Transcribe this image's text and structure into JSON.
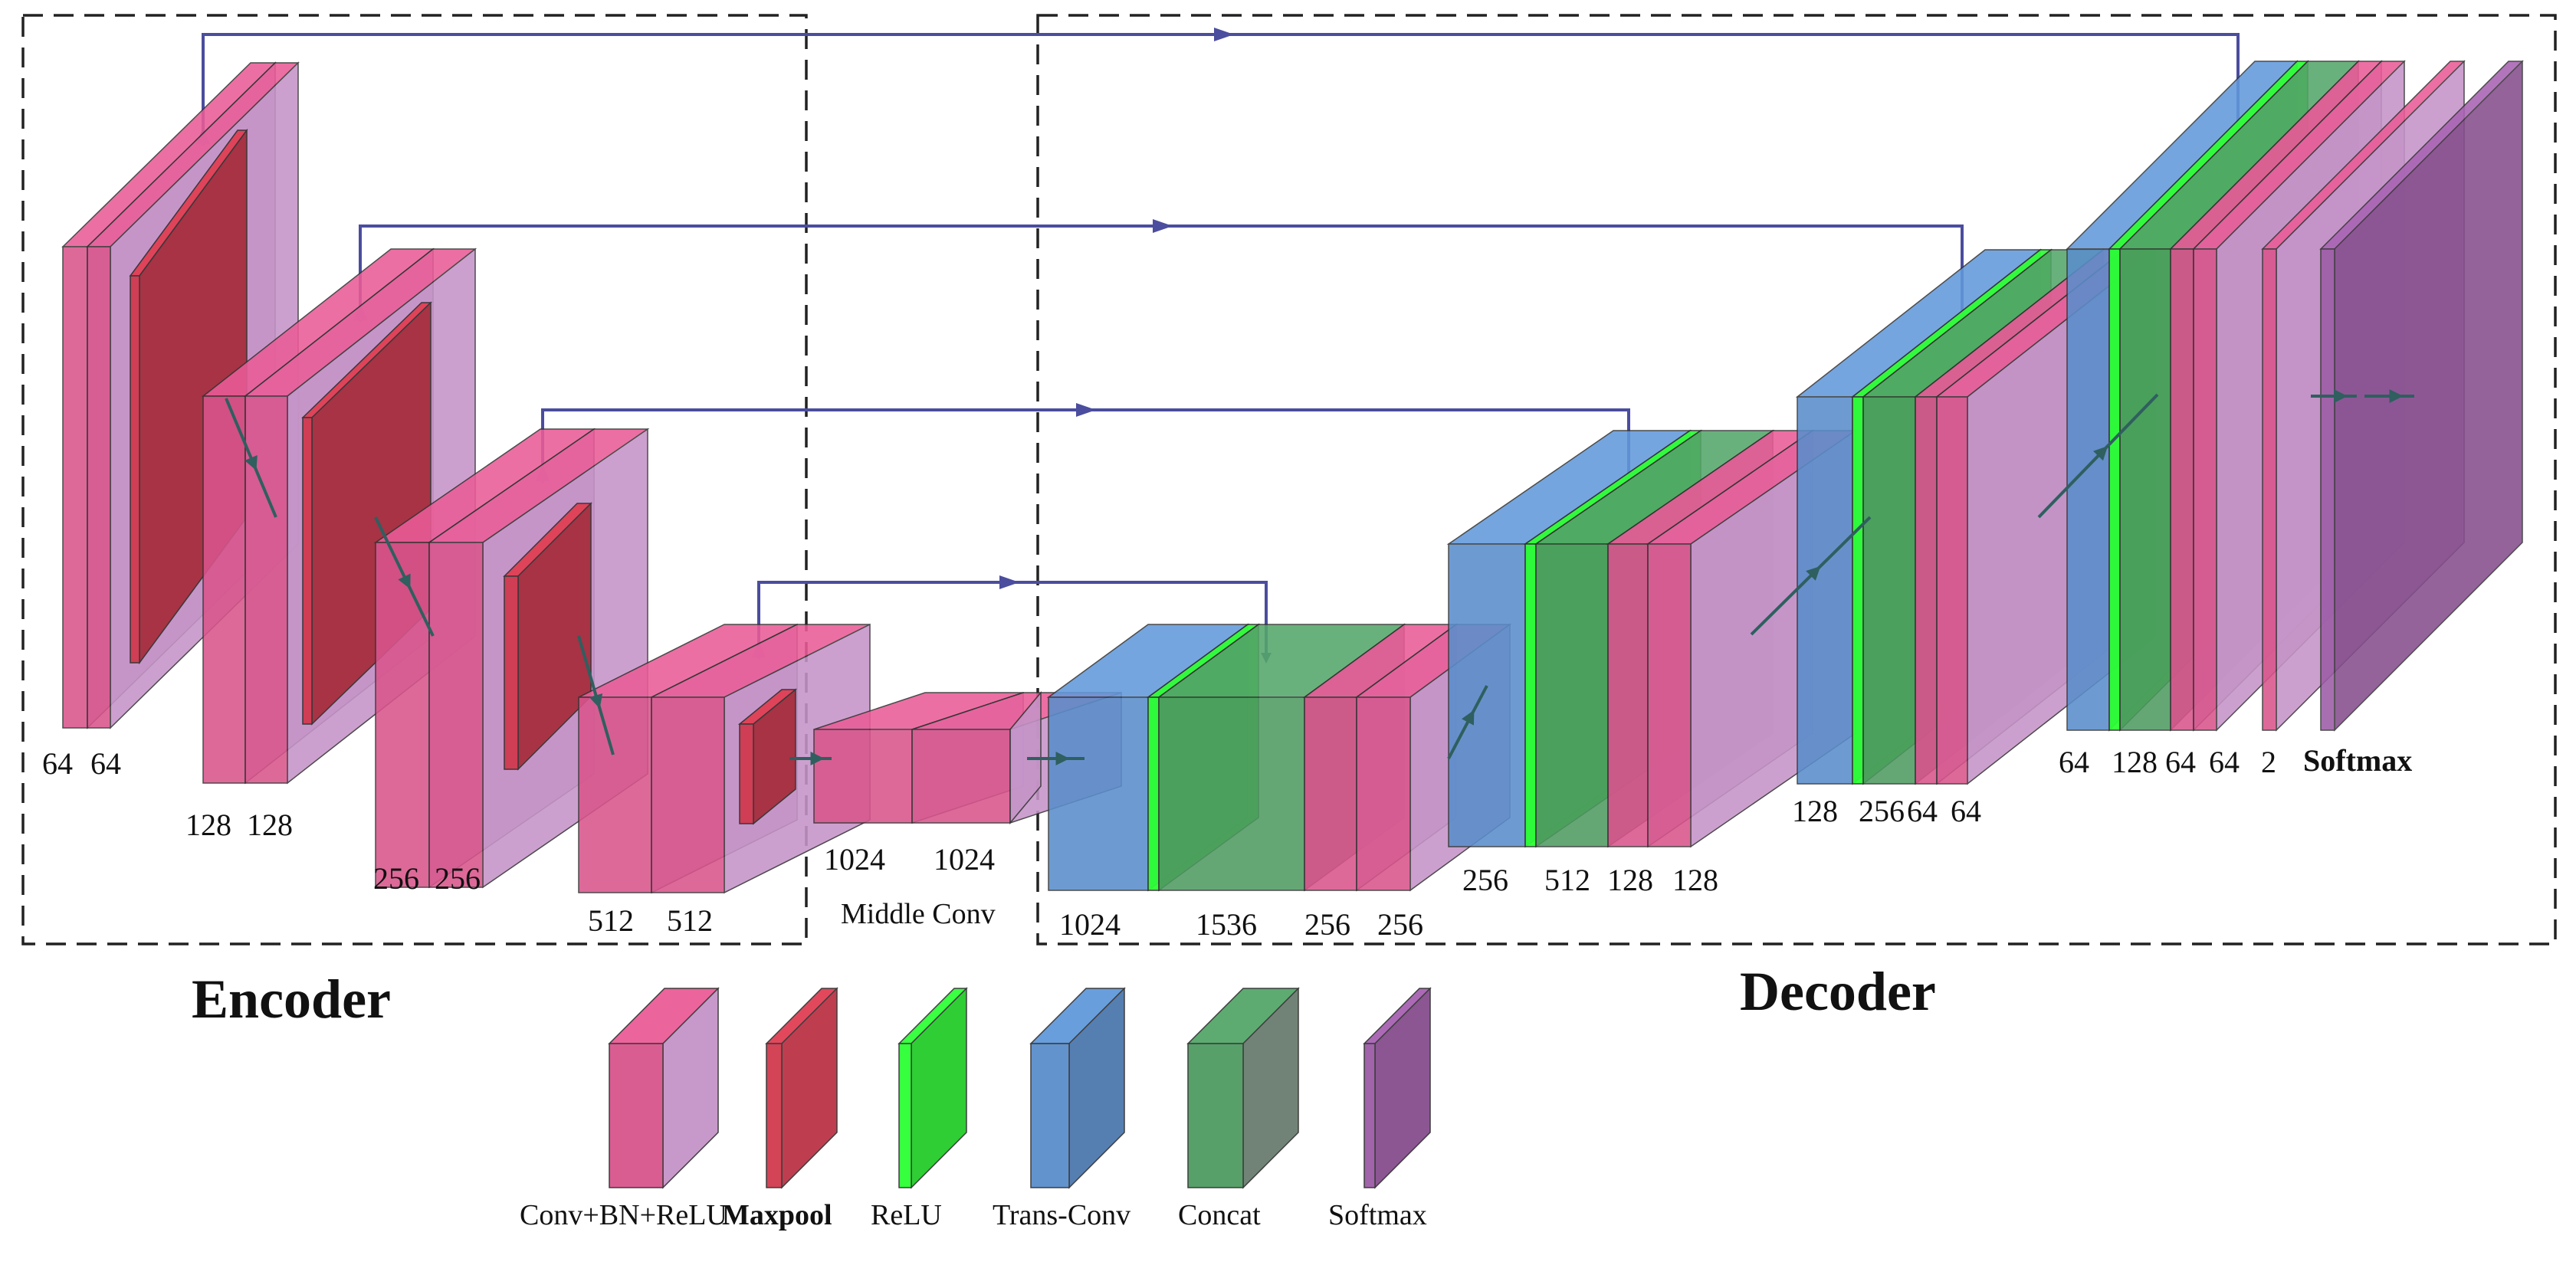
{
  "colors": {
    "conv": "#d9558c",
    "conv_side": "#c594c8",
    "maxpool": "#d03a4e",
    "relu": "#2cff34",
    "transconv": "#5a8ecb",
    "concat": "#4f9b62",
    "concat_side": "#6a7d6f",
    "softmax": "#9c5ca6",
    "arrow": "#4b4d9e",
    "flow": "#2f5f5f"
  },
  "sections": {
    "encoder": "Encoder",
    "decoder": "Decoder",
    "middle": "Middle Conv"
  },
  "encoder_labels": [
    [
      "64",
      "64"
    ],
    [
      "128",
      "128"
    ],
    [
      "256",
      "256"
    ],
    [
      "512",
      "512"
    ]
  ],
  "middle_labels": [
    "1024",
    "1024"
  ],
  "decoder_labels": [
    [
      "1024",
      "1536",
      "256",
      "256"
    ],
    [
      "256",
      "512",
      "128",
      "128"
    ],
    [
      "128",
      "256",
      "64",
      "64"
    ],
    [
      "64",
      "128",
      "64",
      "64"
    ]
  ],
  "output_labels": [
    "2",
    "Softmax"
  ],
  "legend": [
    {
      "key": "conv",
      "label": "Conv+BN+ReLU",
      "icon": "conv-block-icon"
    },
    {
      "key": "maxpool",
      "label": "Maxpool",
      "icon": "maxpool-block-icon"
    },
    {
      "key": "relu",
      "label": "ReLU",
      "icon": "relu-block-icon"
    },
    {
      "key": "transconv",
      "label": "Trans-Conv",
      "icon": "transconv-block-icon"
    },
    {
      "key": "concat",
      "label": "Concat",
      "icon": "concat-block-icon"
    },
    {
      "key": "softmax",
      "label": "Softmax",
      "icon": "softmax-block-icon"
    }
  ]
}
